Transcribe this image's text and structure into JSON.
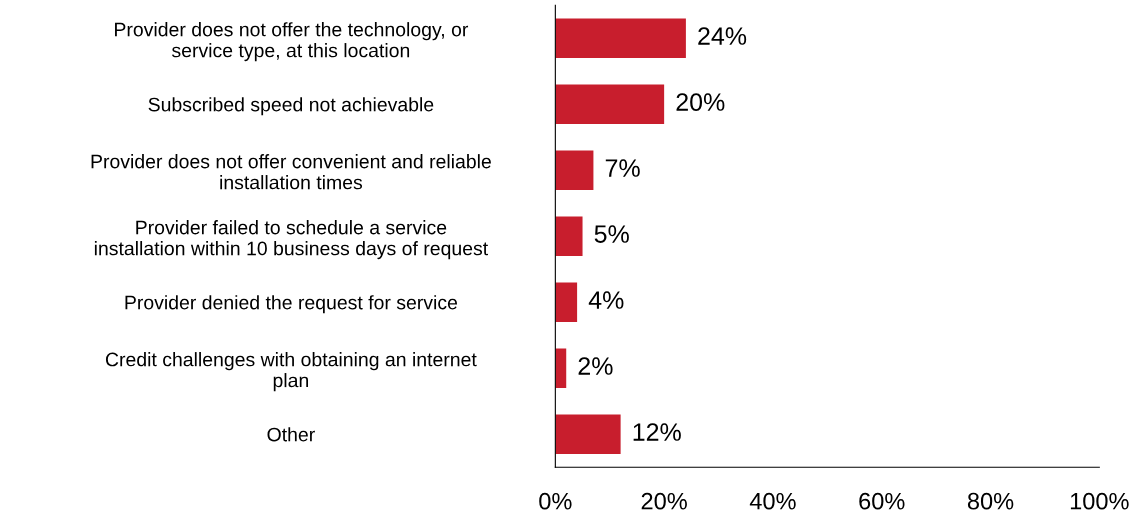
{
  "chart_data": {
    "type": "bar",
    "orientation": "horizontal",
    "categories": [
      "Provider does not offer the technology, or\nservice type, at this location",
      "Subscribed speed not achievable",
      "Provider does not offer convenient and reliable\ninstallation times",
      "Provider failed to schedule a service\ninstallation within 10 business days of request",
      "Provider denied the request for service",
      "Credit challenges with obtaining an internet\nplan",
      "Other"
    ],
    "values": [
      24,
      20,
      7,
      5,
      4,
      2,
      12
    ],
    "value_labels": [
      "24%",
      "20%",
      "7%",
      "5%",
      "4%",
      "2%",
      "12%"
    ],
    "color": "#c81e2d",
    "xlim": [
      0,
      100
    ],
    "xticks": [
      {
        "value": 0,
        "label": "0%"
      },
      {
        "value": 20,
        "label": "20%"
      },
      {
        "value": 40,
        "label": "40%"
      },
      {
        "value": 60,
        "label": "60%"
      },
      {
        "value": 80,
        "label": "80%"
      },
      {
        "value": 100,
        "label": "100%"
      }
    ],
    "grid": false,
    "legend": false
  }
}
